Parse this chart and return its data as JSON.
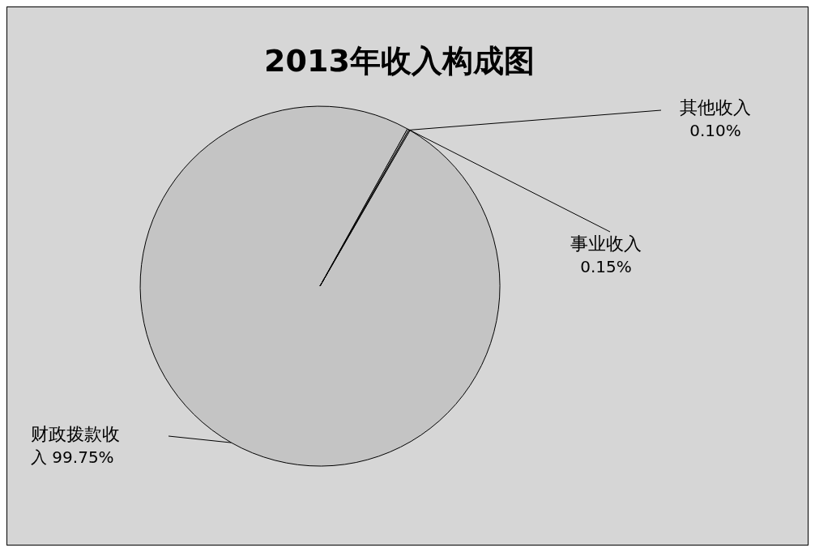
{
  "chart_data": {
    "type": "pie",
    "title": "2013年收入构成图",
    "categories": [
      "财政拨款收入",
      "事业收入",
      "其他收入"
    ],
    "values": [
      99.75,
      0.15,
      0.1
    ],
    "colors": [
      "#c4c4c4",
      "#c4c4c4",
      "#c4c4c4"
    ],
    "value_labels": [
      "99.75%",
      "0.15%",
      "0.10%"
    ]
  }
}
